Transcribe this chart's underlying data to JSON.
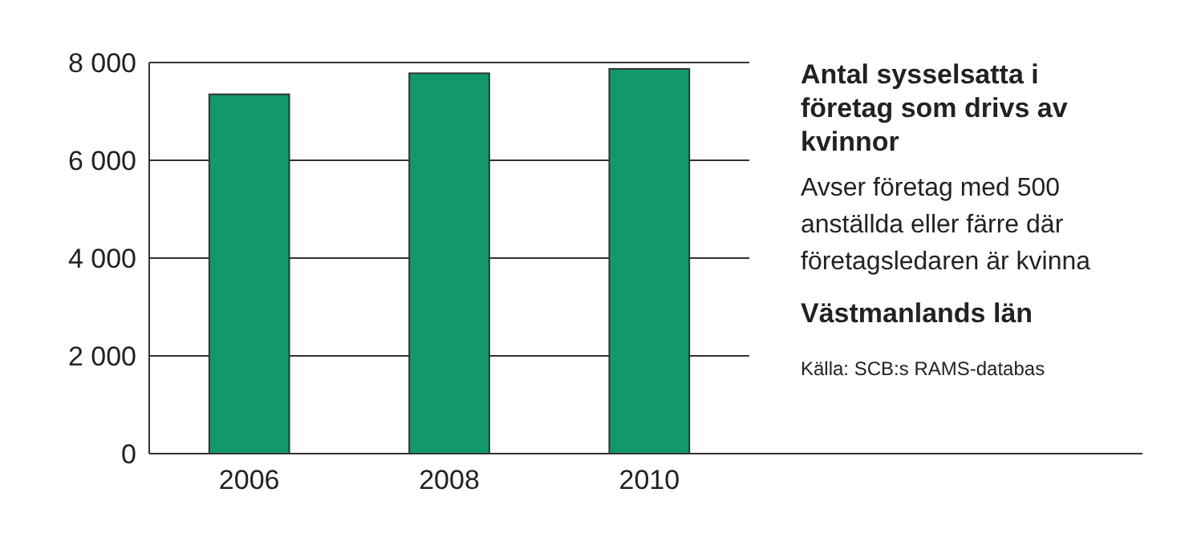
{
  "chart_data": {
    "type": "bar",
    "title": "Antal sysselsatta i företag som drivs av kvinnor",
    "subtitle": "Avser företag med 500 anställda eller färre där företagsledaren är kvinna",
    "annotations": [
      "Västmanlands län",
      "Källa: SCB:s RAMS-databas"
    ],
    "categories": [
      "2006",
      "2008",
      "2010"
    ],
    "values": [
      7350,
      7780,
      7870
    ],
    "color": "#12996a",
    "ylim": [
      0,
      8000
    ],
    "yticks": [
      {
        "value": 0,
        "label": "0"
      },
      {
        "value": 2000,
        "label": "2 000"
      },
      {
        "value": 4000,
        "label": "4 000"
      },
      {
        "value": 6000,
        "label": "6 000"
      },
      {
        "value": 8000,
        "label": "8 000"
      }
    ],
    "grid": "y"
  }
}
